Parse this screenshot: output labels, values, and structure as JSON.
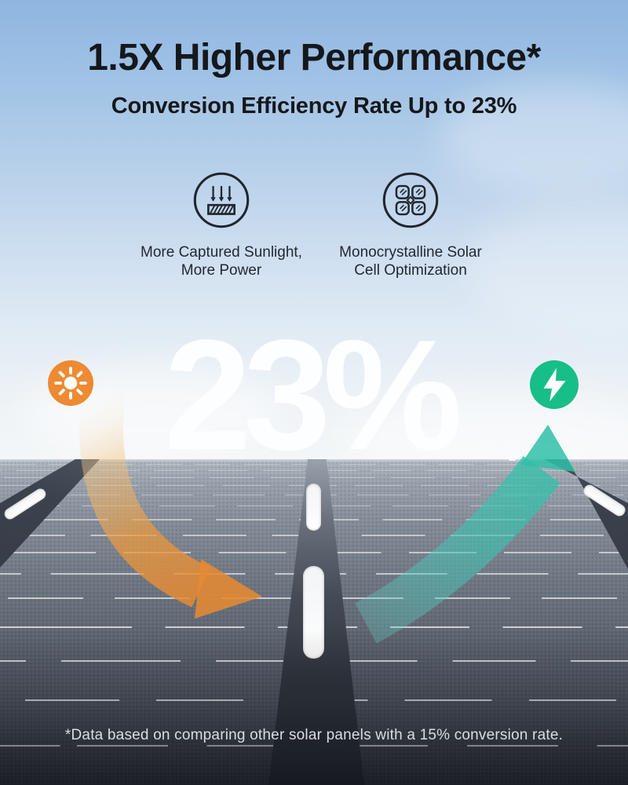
{
  "header": {
    "title": "1.5X Higher Performance*",
    "subtitle": "Conversion Efficiency Rate Up to 23%"
  },
  "features": [
    {
      "icon": "sunlight-rays-panel-icon",
      "line1": "More Captured Sunlight,",
      "line2": "More Power"
    },
    {
      "icon": "monocrystalline-cells-icon",
      "line1": "Monocrystalline Solar",
      "line2": "Cell Optimization"
    }
  ],
  "highlight": {
    "value": "23%"
  },
  "badges": {
    "left": "sun-icon",
    "right": "lightning-bolt-icon"
  },
  "footnote": "*Data based on comparing other solar panels with a 15% conversion rate.",
  "colors": {
    "accent_orange": "#ED8A33",
    "accent_green": "#17BE87",
    "accent_teal": "#2FBFA8",
    "sky_top": "#8FB6E0",
    "panel_dark": "#3A3E48",
    "headline_text": "#15181B",
    "big_number_text": "#FDFEFF",
    "footnote_text": "#D9DEE3"
  }
}
